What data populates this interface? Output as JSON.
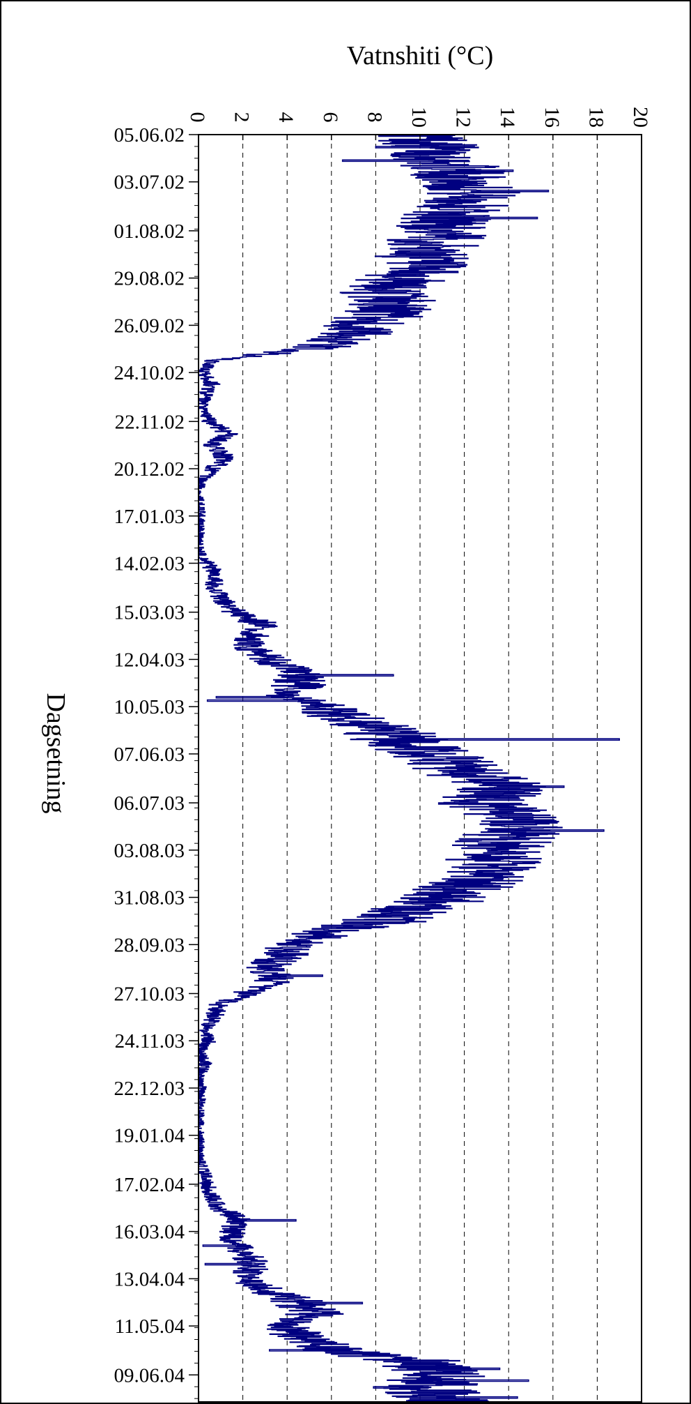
{
  "chart_data": {
    "type": "line",
    "orientation": "rotated",
    "xlabel": "Vatnshiti (°C)",
    "ylabel": "Dagsetning",
    "xlim": [
      0,
      20
    ],
    "x_ticks": [
      "0",
      "2",
      "4",
      "6",
      "8",
      "10",
      "12",
      "14",
      "16",
      "18",
      "20"
    ],
    "date_ticks": [
      "05.06.02",
      "03.07.02",
      "01.08.02",
      "29.08.02",
      "26.09.02",
      "24.10.02",
      "22.11.02",
      "20.12.02",
      "17.01.03",
      "14.02.03",
      "15.03.03",
      "12.04.03",
      "10.05.03",
      "07.06.03",
      "06.07.03",
      "03.08.03",
      "31.08.03",
      "28.09.03",
      "27.10.03",
      "24.11.03",
      "22.12.03",
      "19.01.04",
      "17.02.04",
      "16.03.04",
      "13.04.04",
      "11.05.04",
      "09.06.04"
    ],
    "ylim": [
      "05.06.02",
      "25.06.04"
    ],
    "grid": "vertical dashed",
    "line_color": "#000080",
    "series": [
      {
        "points": [
          [
            "05.06.02",
            10.0
          ],
          [
            "12.06.02",
            10.6
          ],
          [
            "19.06.02",
            10.8
          ],
          [
            "26.06.02",
            11.6
          ],
          [
            "03.07.02",
            12.0
          ],
          [
            "10.07.02",
            12.4
          ],
          [
            "17.07.02",
            11.9
          ],
          [
            "24.07.02",
            11.3
          ],
          [
            "01.08.02",
            11.0
          ],
          [
            "08.08.02",
            10.6
          ],
          [
            "15.08.02",
            10.2
          ],
          [
            "22.08.02",
            9.9
          ],
          [
            "29.08.02",
            9.2
          ],
          [
            "05.09.02",
            8.3
          ],
          [
            "12.09.02",
            8.8
          ],
          [
            "19.09.02",
            8.5
          ],
          [
            "26.09.02",
            7.3
          ],
          [
            "03.10.02",
            6.8
          ],
          [
            "10.10.02",
            5.2
          ],
          [
            "14.10.02",
            2.5
          ],
          [
            "17.10.02",
            0.6
          ],
          [
            "24.10.02",
            0.2
          ],
          [
            "31.10.02",
            0.6
          ],
          [
            "07.11.02",
            0.3
          ],
          [
            "14.11.02",
            0.1
          ],
          [
            "22.11.02",
            0.5
          ],
          [
            "29.11.02",
            1.4
          ],
          [
            "06.12.02",
            0.6
          ],
          [
            "13.12.02",
            1.2
          ],
          [
            "20.12.02",
            0.7
          ],
          [
            "27.12.02",
            0.1
          ],
          [
            "03.01.03",
            0.0
          ],
          [
            "17.01.03",
            0.05
          ],
          [
            "31.01.03",
            0.0
          ],
          [
            "07.02.03",
            0.0
          ],
          [
            "14.02.03",
            0.4
          ],
          [
            "21.02.03",
            0.8
          ],
          [
            "28.02.03",
            0.7
          ],
          [
            "07.03.03",
            1.0
          ],
          [
            "15.03.03",
            1.6
          ],
          [
            "22.03.03",
            2.8
          ],
          [
            "29.03.03",
            2.4
          ],
          [
            "05.04.03",
            2.3
          ],
          [
            "12.04.03",
            3.2
          ],
          [
            "19.04.03",
            4.2
          ],
          [
            "26.04.03",
            4.8
          ],
          [
            "03.05.03",
            3.6
          ],
          [
            "10.05.03",
            5.6
          ],
          [
            "17.05.03",
            6.8
          ],
          [
            "24.05.03",
            8.3
          ],
          [
            "31.05.03",
            9.2
          ],
          [
            "07.06.03",
            10.6
          ],
          [
            "14.06.03",
            11.5
          ],
          [
            "21.06.03",
            12.6
          ],
          [
            "28.06.03",
            13.8
          ],
          [
            "06.07.03",
            12.8
          ],
          [
            "13.07.03",
            14.2
          ],
          [
            "20.07.03",
            14.4
          ],
          [
            "27.07.03",
            13.9
          ],
          [
            "03.08.03",
            13.5
          ],
          [
            "10.08.03",
            13.3
          ],
          [
            "17.08.03",
            12.9
          ],
          [
            "24.08.03",
            12.2
          ],
          [
            "31.08.03",
            11.3
          ],
          [
            "07.09.03",
            10.0
          ],
          [
            "14.09.03",
            8.5
          ],
          [
            "21.09.03",
            5.8
          ],
          [
            "28.09.03",
            4.3
          ],
          [
            "05.10.03",
            3.8
          ],
          [
            "12.10.03",
            3.0
          ],
          [
            "19.10.03",
            3.6
          ],
          [
            "27.10.03",
            2.1
          ],
          [
            "03.11.03",
            0.9
          ],
          [
            "10.11.03",
            0.7
          ],
          [
            "17.11.03",
            0.3
          ],
          [
            "24.11.03",
            0.5
          ],
          [
            "01.12.03",
            0.1
          ],
          [
            "08.12.03",
            0.3
          ],
          [
            "15.12.03",
            0.0
          ],
          [
            "22.12.03",
            0.1
          ],
          [
            "05.01.04",
            0.0
          ],
          [
            "19.01.04",
            0.0
          ],
          [
            "02.02.04",
            0.0
          ],
          [
            "12.02.04",
            0.3
          ],
          [
            "17.02.04",
            0.4
          ],
          [
            "24.02.04",
            0.6
          ],
          [
            "02.03.04",
            0.9
          ],
          [
            "09.03.04",
            1.8
          ],
          [
            "16.03.04",
            1.5
          ],
          [
            "23.03.04",
            1.6
          ],
          [
            "30.03.04",
            2.2
          ],
          [
            "06.04.04",
            2.5
          ],
          [
            "13.04.04",
            2.0
          ],
          [
            "20.04.04",
            3.1
          ],
          [
            "27.04.04",
            4.6
          ],
          [
            "04.05.04",
            5.3
          ],
          [
            "11.05.04",
            3.8
          ],
          [
            "18.05.04",
            4.7
          ],
          [
            "25.05.04",
            6.1
          ],
          [
            "01.06.04",
            9.8
          ],
          [
            "09.06.04",
            11.0
          ],
          [
            "16.06.04",
            10.4
          ],
          [
            "25.06.04",
            10.9
          ]
        ],
        "peaks": [
          [
            "26.06.02",
            14.2
          ],
          [
            "08.07.02",
            15.8
          ],
          [
            "24.07.02",
            15.3
          ],
          [
            "29.05.03",
            19.0
          ],
          [
            "26.06.03",
            16.5
          ],
          [
            "22.07.03",
            18.3
          ],
          [
            "21.04.03",
            8.8
          ],
          [
            "16.10.03",
            5.6
          ],
          [
            "09.03.04",
            4.4
          ],
          [
            "27.04.04",
            7.4
          ],
          [
            "05.06.04",
            13.6
          ],
          [
            "12.06.04",
            14.9
          ],
          [
            "22.06.04",
            14.4
          ]
        ],
        "dips": [
          [
            "12.06.02",
            8.0
          ],
          [
            "20.06.02",
            6.5
          ],
          [
            "06.05.03",
            0.4
          ],
          [
            "04.05.03",
            0.8
          ],
          [
            "16.06.04",
            7.9
          ],
          [
            "25.05.04",
            3.2
          ],
          [
            "04.04.04",
            0.3
          ],
          [
            "24.03.04",
            0.2
          ]
        ]
      }
    ]
  }
}
